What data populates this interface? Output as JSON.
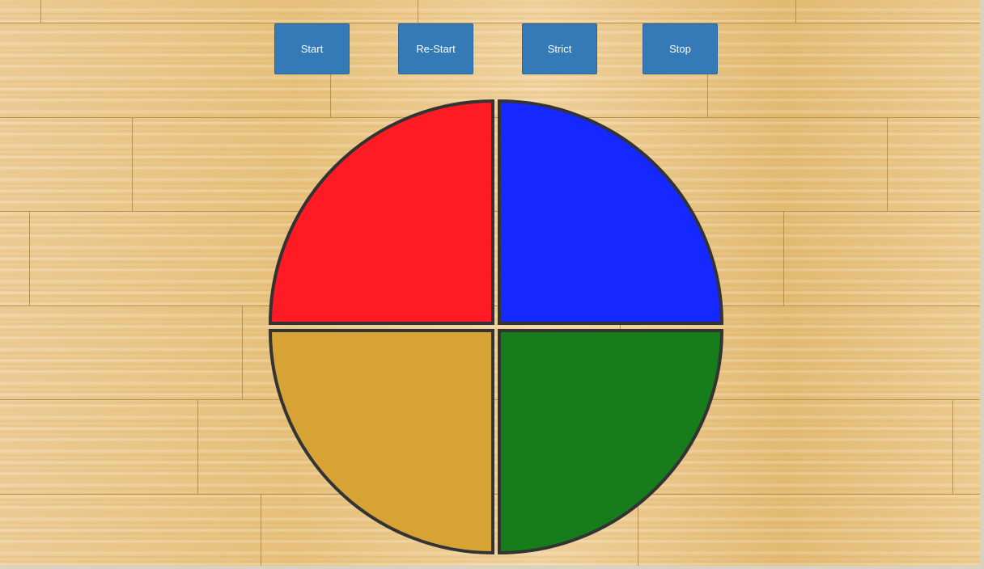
{
  "controls": {
    "start_label": "Start",
    "restart_label": "Re-Start",
    "strict_label": "Strict",
    "stop_label": "Stop"
  },
  "board": {
    "pads": [
      {
        "id": "red",
        "color": "#ff1b23"
      },
      {
        "id": "blue",
        "color": "#1528ff"
      },
      {
        "id": "yellow",
        "color": "#d6a334"
      },
      {
        "id": "green",
        "color": "#177c1a"
      }
    ],
    "outline_color": "#333333"
  },
  "theme": {
    "button_color": "#347ab7"
  }
}
